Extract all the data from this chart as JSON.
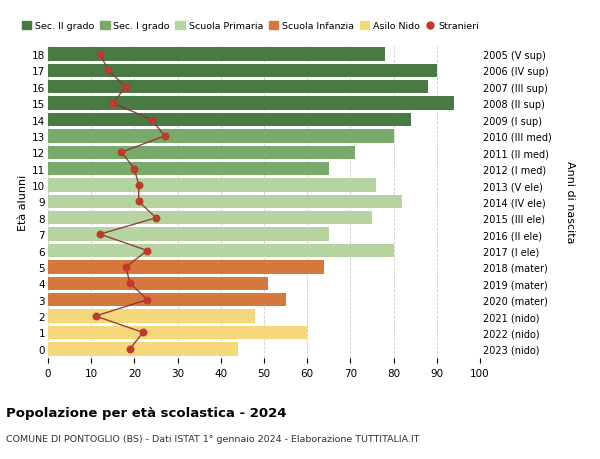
{
  "ages": [
    18,
    17,
    16,
    15,
    14,
    13,
    12,
    11,
    10,
    9,
    8,
    7,
    6,
    5,
    4,
    3,
    2,
    1,
    0
  ],
  "years": [
    "2005 (V sup)",
    "2006 (IV sup)",
    "2007 (III sup)",
    "2008 (II sup)",
    "2009 (I sup)",
    "2010 (III med)",
    "2011 (II med)",
    "2012 (I med)",
    "2013 (V ele)",
    "2014 (IV ele)",
    "2015 (III ele)",
    "2016 (II ele)",
    "2017 (I ele)",
    "2018 (mater)",
    "2019 (mater)",
    "2020 (mater)",
    "2021 (nido)",
    "2022 (nido)",
    "2023 (nido)"
  ],
  "bar_values": [
    78,
    90,
    88,
    94,
    84,
    80,
    71,
    65,
    76,
    82,
    75,
    65,
    80,
    64,
    51,
    55,
    48,
    60,
    44
  ],
  "stranieri": [
    12,
    14,
    18,
    15,
    24,
    27,
    17,
    20,
    21,
    21,
    25,
    12,
    23,
    18,
    19,
    23,
    11,
    22,
    19
  ],
  "bar_colors": [
    "#4a7a44",
    "#4a7a44",
    "#4a7a44",
    "#4a7a44",
    "#4a7a44",
    "#7aaa6a",
    "#7aaa6a",
    "#7aaa6a",
    "#b5d4a0",
    "#b5d4a0",
    "#b5d4a0",
    "#b5d4a0",
    "#b5d4a0",
    "#d4793b",
    "#d4793b",
    "#d4793b",
    "#f5d87a",
    "#f5d87a",
    "#f5d87a"
  ],
  "legend_labels": [
    "Sec. II grado",
    "Sec. I grado",
    "Scuola Primaria",
    "Scuola Infanzia",
    "Asilo Nido",
    "Stranieri"
  ],
  "legend_colors": [
    "#4a7a44",
    "#7aaa6a",
    "#b5d4a0",
    "#d4793b",
    "#f5d87a",
    "#c0392b"
  ],
  "stranieri_color": "#c0392b",
  "stranieri_line_color": "#8b3030",
  "ylabel_left": "Età alunni",
  "ylabel_right": "Anni di nascita",
  "title": "Popolazione per età scolastica - 2024",
  "subtitle": "COMUNE DI PONTOGLIO (BS) - Dati ISTAT 1° gennaio 2024 - Elaborazione TUTTITALIA.IT",
  "xlim": [
    0,
    100
  ],
  "background_color": "#ffffff",
  "grid_color": "#cccccc"
}
